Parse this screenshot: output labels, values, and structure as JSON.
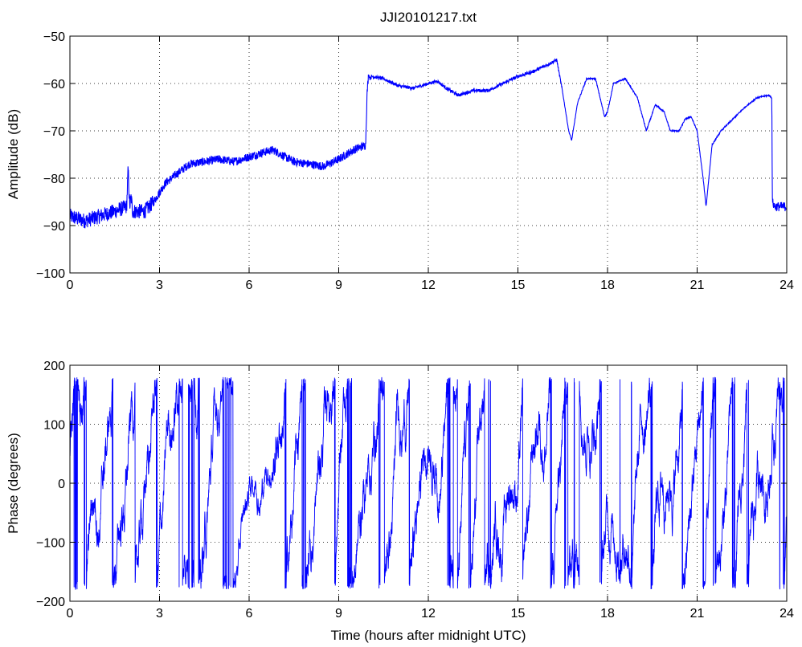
{
  "chart_data": [
    {
      "type": "line",
      "title": "JJI20101217.txt",
      "xlabel": "",
      "ylabel": "Amplitude (dB)",
      "xlim": [
        0,
        24
      ],
      "ylim": [
        -100,
        -50
      ],
      "xticks": [
        "0",
        "3",
        "6",
        "9",
        "12",
        "15",
        "18",
        "21",
        "24"
      ],
      "yticks": [
        "−100",
        "−90",
        "−80",
        "−70",
        "−60",
        "−50"
      ],
      "grid": true,
      "series_color": "#0000ff",
      "series": [
        {
          "x": [
            0,
            0.5,
            1.0,
            1.5,
            1.9,
            1.95,
            2.0,
            2.05,
            2.1,
            2.5,
            2.8,
            3.2,
            3.6,
            4.0,
            4.5,
            5.0,
            5.5,
            6.0,
            6.5,
            6.8,
            7.2,
            7.5,
            8.0,
            8.5,
            9.0,
            9.5,
            9.9,
            9.95,
            10.0,
            10.05,
            10.1,
            10.5,
            11.0,
            11.5,
            12.0,
            12.3,
            12.6,
            13.0,
            13.5,
            14.0,
            14.5,
            15.0,
            15.5,
            16.0,
            16.3,
            16.5,
            16.7,
            16.8,
            17.0,
            17.3,
            17.6,
            17.9,
            18.0,
            18.2,
            18.6,
            19.0,
            19.3,
            19.6,
            19.9,
            20.1,
            20.4,
            20.6,
            20.8,
            21.0,
            21.2,
            21.3,
            21.5,
            21.8,
            22.2,
            22.6,
            23.0,
            23.4,
            23.5,
            23.52,
            23.6,
            24.0
          ],
          "y": [
            -88,
            -89,
            -88,
            -87,
            -86,
            -78,
            -86,
            -84,
            -87,
            -87,
            -85,
            -81,
            -79,
            -77,
            -76.5,
            -76,
            -76.5,
            -75.5,
            -74.5,
            -74,
            -75.5,
            -76.5,
            -77,
            -77.5,
            -76,
            -74,
            -73,
            -62,
            -58,
            -59,
            -58.5,
            -59,
            -60.5,
            -61,
            -60,
            -59.5,
            -61,
            -62.5,
            -61.5,
            -61.5,
            -60,
            -58.5,
            -57.5,
            -56,
            -55,
            -62,
            -70,
            -72,
            -64,
            -59,
            -59,
            -67,
            -66,
            -60,
            -59,
            -63,
            -70,
            -64.5,
            -66,
            -70,
            -70,
            -67.5,
            -67,
            -70,
            -80,
            -86,
            -73,
            -70,
            -67.5,
            -65,
            -63,
            -62.5,
            -63,
            -85,
            -86,
            -86
          ]
        }
      ]
    },
    {
      "type": "line",
      "title": "",
      "xlabel": "Time (hours after midnight UTC)",
      "ylabel": "Phase (degrees)",
      "xlim": [
        0,
        24
      ],
      "ylim": [
        -200,
        200
      ],
      "xticks": [
        "0",
        "3",
        "6",
        "9",
        "12",
        "15",
        "18",
        "21",
        "24"
      ],
      "yticks": [
        "−200",
        "−100",
        "0",
        "100",
        "200"
      ],
      "grid": true,
      "series_color": "#0000ff",
      "series": [
        {
          "note_values": "phase wraps between -180 and 180 degrees throughout the day",
          "x_range": [
            0,
            24
          ],
          "y_range": [
            -180,
            180
          ]
        }
      ]
    }
  ]
}
